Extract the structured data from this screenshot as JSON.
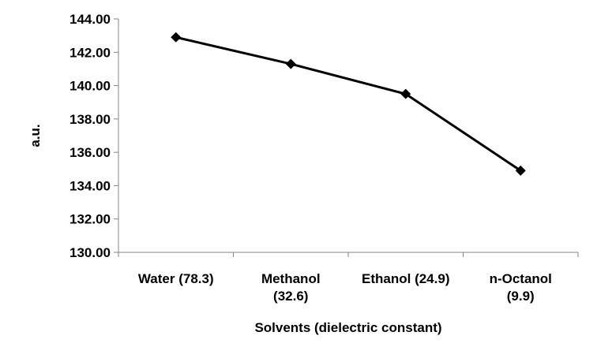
{
  "chart_data": {
    "type": "line",
    "categories": [
      [
        "Water (78.3)"
      ],
      [
        "Methanol",
        "(32.6)"
      ],
      [
        "Ethanol (24.9)"
      ],
      [
        "n-Octanol",
        "(9.9)"
      ]
    ],
    "series": [
      {
        "values": [
          142.9,
          141.3,
          139.5,
          134.9
        ],
        "color": "#000000",
        "marker": "diamond"
      }
    ],
    "xlabel": "Solvents (dielectric constant)",
    "ylabel": "a.u.",
    "ylim": [
      130,
      144
    ],
    "yticks": [
      "130.00",
      "132.00",
      "134.00",
      "136.00",
      "138.00",
      "140.00",
      "142.00",
      "144.00"
    ],
    "grid": false,
    "legend": "none"
  }
}
